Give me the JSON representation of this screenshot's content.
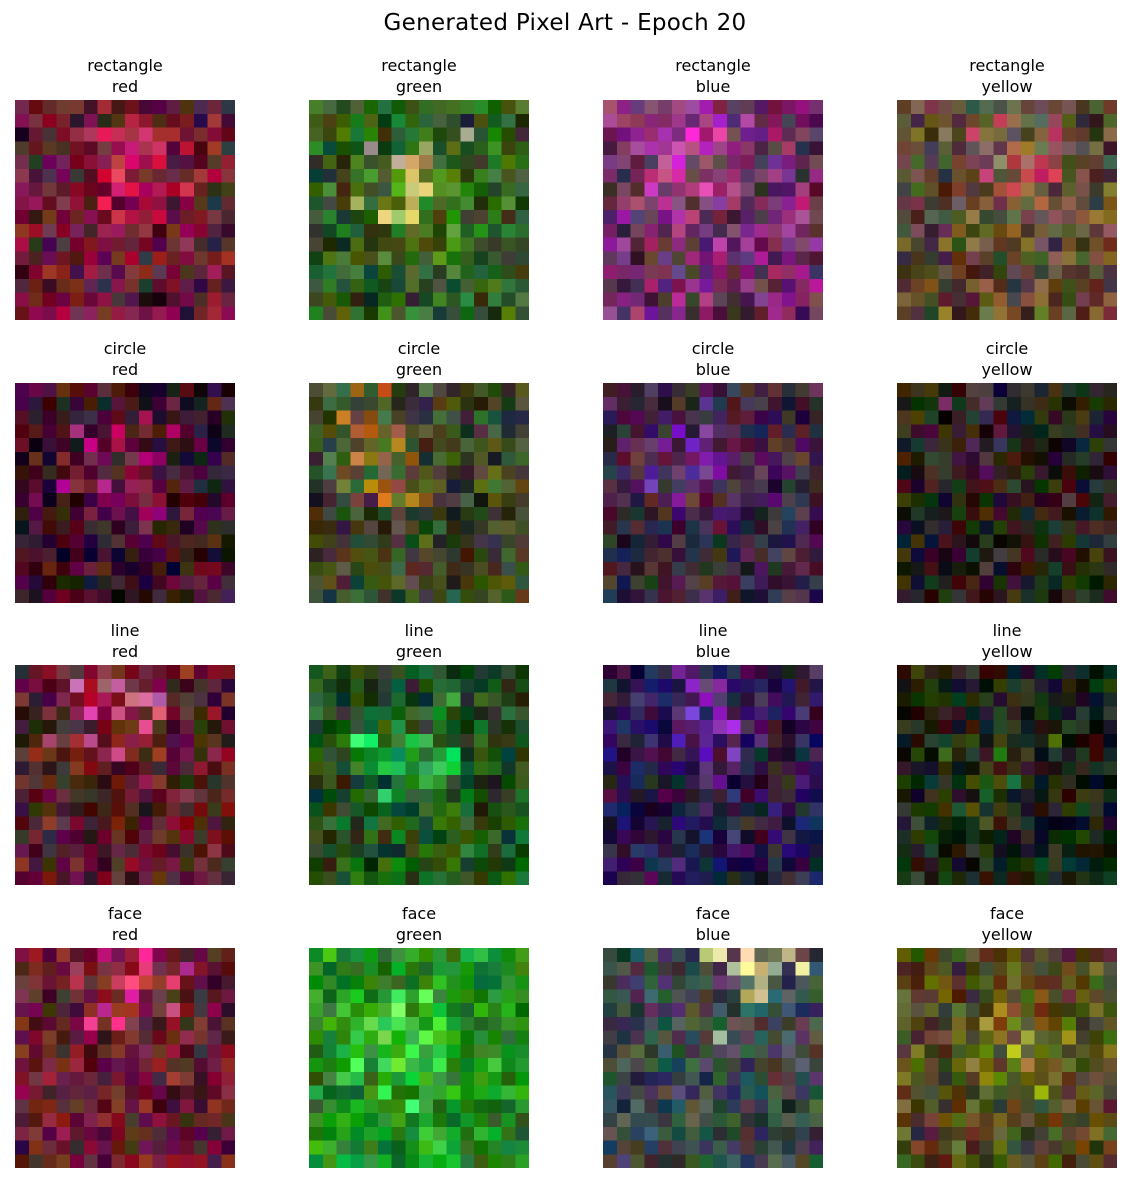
{
  "figure": {
    "title": "Generated Pixel Art - Epoch 20"
  },
  "grid": {
    "pixels_per_side": 16,
    "panels": [
      {
        "shape": "rectangle",
        "color": "red",
        "palette": {
          "base": "#2d2128",
          "accent": "#c8144a",
          "hot": "#e0305a"
        }
      },
      {
        "shape": "rectangle",
        "color": "green",
        "palette": {
          "base": "#233a1c",
          "accent": "#4e9a28",
          "hot": "#e8c890"
        }
      },
      {
        "shape": "rectangle",
        "color": "blue",
        "palette": {
          "base": "#3a2838",
          "accent": "#d040b0",
          "hot": "#f030e0"
        }
      },
      {
        "shape": "rectangle",
        "color": "yellow",
        "palette": {
          "base": "#3c3024",
          "accent": "#a07a58",
          "hot": "#d83a60"
        }
      },
      {
        "shape": "circle",
        "color": "red",
        "palette": {
          "base": "#1a0e12",
          "accent": "#7a1a4a",
          "hot": "#e0108a"
        }
      },
      {
        "shape": "circle",
        "color": "green",
        "palette": {
          "base": "#283020",
          "accent": "#5a6a38",
          "hot": "#d0702a"
        }
      },
      {
        "shape": "circle",
        "color": "blue",
        "palette": {
          "base": "#2c1e2c",
          "accent": "#5a2a60",
          "hot": "#8030c0"
        }
      },
      {
        "shape": "circle",
        "color": "yellow",
        "palette": {
          "base": "#1e1c16",
          "accent": "#3a2a28",
          "hot": "#5a3050"
        }
      },
      {
        "shape": "line",
        "color": "red",
        "palette": {
          "base": "#2e1e1c",
          "accent": "#a0203a",
          "hot": "#e06ab0"
        }
      },
      {
        "shape": "line",
        "color": "green",
        "palette": {
          "base": "#1a2e18",
          "accent": "#2a8a2a",
          "hot": "#20e060"
        }
      },
      {
        "shape": "line",
        "color": "blue",
        "palette": {
          "base": "#1e1630",
          "accent": "#4a2a7a",
          "hot": "#9030d0"
        }
      },
      {
        "shape": "line",
        "color": "yellow",
        "palette": {
          "base": "#141a10",
          "accent": "#2a3a1e",
          "hot": "#3a6a28"
        }
      },
      {
        "shape": "face",
        "color": "red",
        "palette": {
          "base": "#3a1e24",
          "accent": "#b02040",
          "hot": "#ff3aa0"
        }
      },
      {
        "shape": "face",
        "color": "green",
        "palette": {
          "base": "#1a6a1a",
          "accent": "#30d030",
          "hot": "#60ff60"
        }
      },
      {
        "shape": "face",
        "color": "blue",
        "palette": {
          "base": "#2a3a3a",
          "accent": "#5a5a6a",
          "hot": "#f0f0a0"
        }
      },
      {
        "shape": "face",
        "color": "yellow",
        "palette": {
          "base": "#3e3020",
          "accent": "#7a7a20",
          "hot": "#c0b020"
        }
      }
    ]
  }
}
